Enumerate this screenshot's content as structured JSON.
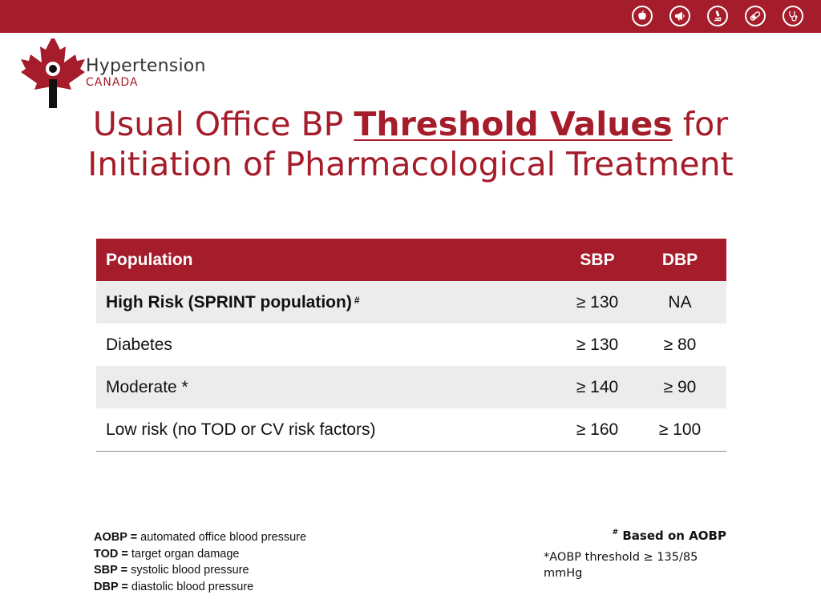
{
  "header": {
    "accent_color": "#a51c2a",
    "icons": [
      "apple-icon",
      "megaphone-icon",
      "microscope-icon",
      "pill-icon",
      "stethoscope-icon"
    ]
  },
  "logo": {
    "line1": "Hypertension",
    "line2": "CANADA"
  },
  "title": {
    "part1": "Usual Office BP ",
    "highlight": "Threshold Values",
    "part2": " for",
    "line2": "Initiation of Pharmacological Treatment"
  },
  "table": {
    "headers": [
      "Population",
      "SBP",
      "DBP"
    ],
    "rows": [
      {
        "population": "High Risk (SPRINT population)",
        "marker": "#",
        "sbp": "≥ 130",
        "dbp": "NA"
      },
      {
        "population": "Diabetes",
        "sbp": "≥ 130",
        "dbp": "≥ 80"
      },
      {
        "population": "Moderate *",
        "sbp": "≥ 140",
        "dbp": "≥ 90"
      },
      {
        "population": "Low risk (no TOD or CV risk factors)",
        "sbp": "≥ 160",
        "dbp": "≥ 100"
      }
    ]
  },
  "legend": [
    {
      "abbr": "AOBP =",
      "text": " automated office blood pressure"
    },
    {
      "abbr": "TOD =",
      "text": " target organ damage"
    },
    {
      "abbr": "SBP =",
      "text": " systolic blood pressure"
    },
    {
      "abbr": "DBP =",
      "text": " diastolic blood pressure"
    }
  ],
  "notes": {
    "marker": "#",
    "based_on": " Based on AOBP",
    "aobp_threshold": "*AOBP threshold ≥ 135/85 mmHg"
  }
}
